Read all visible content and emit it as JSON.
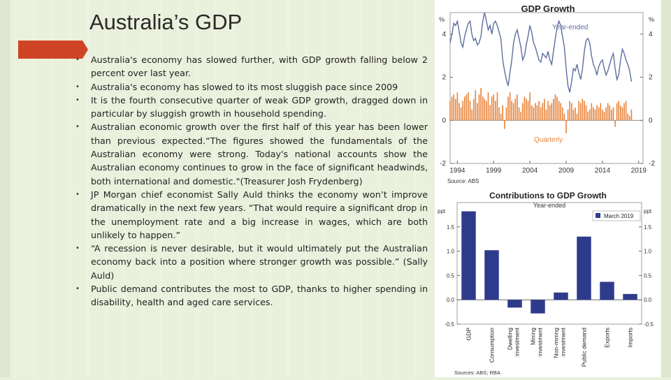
{
  "slide": {
    "title": "Australia’s  GDP",
    "bullets": [
      "Australia's economy has slowed further, with GDP growth falling below 2 percent over last year.",
      "Australia's economy has slowed to its most sluggish pace since 2009",
      "It is the fourth consecutive quarter of weak GDP growth, dragged down in particular by sluggish growth in household spending.",
      "Australian economic growth over the first half of this year has been lower than previous expected.“The figures showed the fundamentals of the Australian economy were strong. Today's national accounts show the Australian economy continues to grow in the face of significant headwinds, both international and domestic.\"(Treasurer Josh Frydenberg)",
      "JP Morgan chief economist Sally Auld thinks the economy won’t improve dramatically in the next few years. “That would require a significant drop in the unemployment rate and a big increase in wages, which are both unlikely to happen.”",
      "“A recession is never desirable, but it would ultimately put the Australian economy back into a position where stronger growth was possible.” (Sally Auld)",
      "Public demand contributes the most to GDP, thanks to higher spending in disability, health and aged care services."
    ],
    "bullet_glyph": "•"
  },
  "chart_data": [
    {
      "type": "line",
      "title": "GDP Growth",
      "ylabel": "%",
      "ylabel_right": "%",
      "ylim": [
        -2,
        5
      ],
      "yticks": [
        -2,
        0,
        2,
        4
      ],
      "xticks": [
        "1994",
        "1999",
        "2004",
        "2009",
        "2014",
        "2019"
      ],
      "source": "Source:  ABS",
      "grid": false,
      "series": [
        {
          "name": "Year-ended",
          "type": "line",
          "color": "#5b6e9e",
          "x_start": 1993.0,
          "x_step": 0.25,
          "values": [
            3.6,
            4.0,
            4.5,
            4.4,
            4.6,
            4.1,
            3.6,
            3.4,
            3.9,
            4.2,
            4.5,
            4.6,
            4.0,
            3.7,
            3.8,
            3.5,
            3.6,
            3.9,
            4.6,
            5.0,
            4.6,
            4.2,
            4.4,
            4.0,
            4.5,
            4.6,
            4.4,
            4.1,
            3.8,
            2.8,
            2.3,
            1.9,
            1.6,
            2.2,
            2.8,
            3.6,
            4.0,
            4.2,
            3.8,
            3.4,
            2.8,
            3.0,
            3.5,
            3.9,
            4.4,
            4.1,
            3.6,
            3.4,
            3.1,
            2.8,
            2.7,
            3.1,
            3.0,
            2.9,
            3.2,
            2.8,
            2.6,
            3.2,
            3.8,
            4.3,
            4.6,
            4.4,
            3.9,
            3.4,
            2.4,
            1.6,
            1.3,
            1.8,
            2.4,
            2.3,
            2.6,
            2.2,
            1.9,
            2.4,
            3.2,
            3.7,
            3.8,
            3.6,
            3.0,
            2.6,
            2.4,
            2.1,
            2.5,
            2.7,
            2.8,
            2.4,
            2.1,
            2.3,
            2.6,
            2.9,
            3.1,
            2.4,
            1.9,
            2.1,
            2.8,
            3.3,
            3.1,
            2.8,
            2.6,
            2.3,
            1.8
          ]
        },
        {
          "name": "Quarterly",
          "type": "bar",
          "color": "#e8833a",
          "x_start": 1993.0,
          "x_step": 0.25,
          "values": [
            0.9,
            1.1,
            1.2,
            1.0,
            1.3,
            0.8,
            0.6,
            0.9,
            1.1,
            1.2,
            1.3,
            0.9,
            0.5,
            1.0,
            1.4,
            0.8,
            1.2,
            1.5,
            1.1,
            1.0,
            0.9,
            1.3,
            0.7,
            1.1,
            1.2,
            0.9,
            1.3,
            0.6,
            0.3,
            0.7,
            -0.4,
            0.6,
            1.1,
            1.3,
            0.9,
            0.8,
            1.0,
            1.2,
            0.6,
            0.4,
            0.8,
            1.1,
            1.0,
            0.9,
            1.3,
            0.7,
            0.6,
            0.8,
            0.7,
            0.9,
            0.6,
            0.8,
            1.0,
            0.5,
            0.9,
            0.7,
            0.8,
            1.0,
            1.2,
            1.1,
            0.9,
            0.8,
            0.6,
            0.3,
            -0.6,
            0.5,
            0.9,
            0.8,
            0.5,
            0.6,
            0.3,
            0.9,
            0.8,
            1.0,
            0.9,
            0.7,
            0.4,
            0.5,
            0.8,
            0.6,
            0.5,
            0.7,
            0.6,
            0.8,
            0.5,
            0.4,
            0.6,
            0.8,
            0.7,
            0.5,
            0.6,
            -0.3,
            0.8,
            0.9,
            0.7,
            0.6,
            0.8,
            0.9,
            0.3,
            0.2,
            0.5
          ]
        }
      ]
    },
    {
      "type": "bar",
      "title": "Contributions to GDP Growth",
      "subtitle": "Year-ended",
      "ylabel": "ppt",
      "ylabel_right": "ppt",
      "ylim": [
        -0.5,
        2.0
      ],
      "yticks": [
        -0.5,
        0.0,
        0.5,
        1.0,
        1.5
      ],
      "legend": "top-right",
      "source": "Sources: ABS; RBA",
      "grid": false,
      "categories": [
        "GDP",
        "Consumption",
        "Dwelling investment",
        "Mining investment",
        "Non-mining investment",
        "Public demand",
        "Exports",
        "Imports"
      ],
      "category_lines": [
        [
          "GDP"
        ],
        [
          "Consumption"
        ],
        [
          "Dwelling",
          "investment"
        ],
        [
          "Mining",
          "investment"
        ],
        [
          "Non-mining",
          "investment"
        ],
        [
          "Public demand"
        ],
        [
          "Exports"
        ],
        [
          "Imports"
        ]
      ],
      "series": [
        {
          "name": "March 2019",
          "color": "#2e3b8c",
          "values": [
            1.82,
            1.02,
            -0.16,
            -0.28,
            0.15,
            1.3,
            0.37,
            0.12
          ]
        }
      ]
    }
  ]
}
